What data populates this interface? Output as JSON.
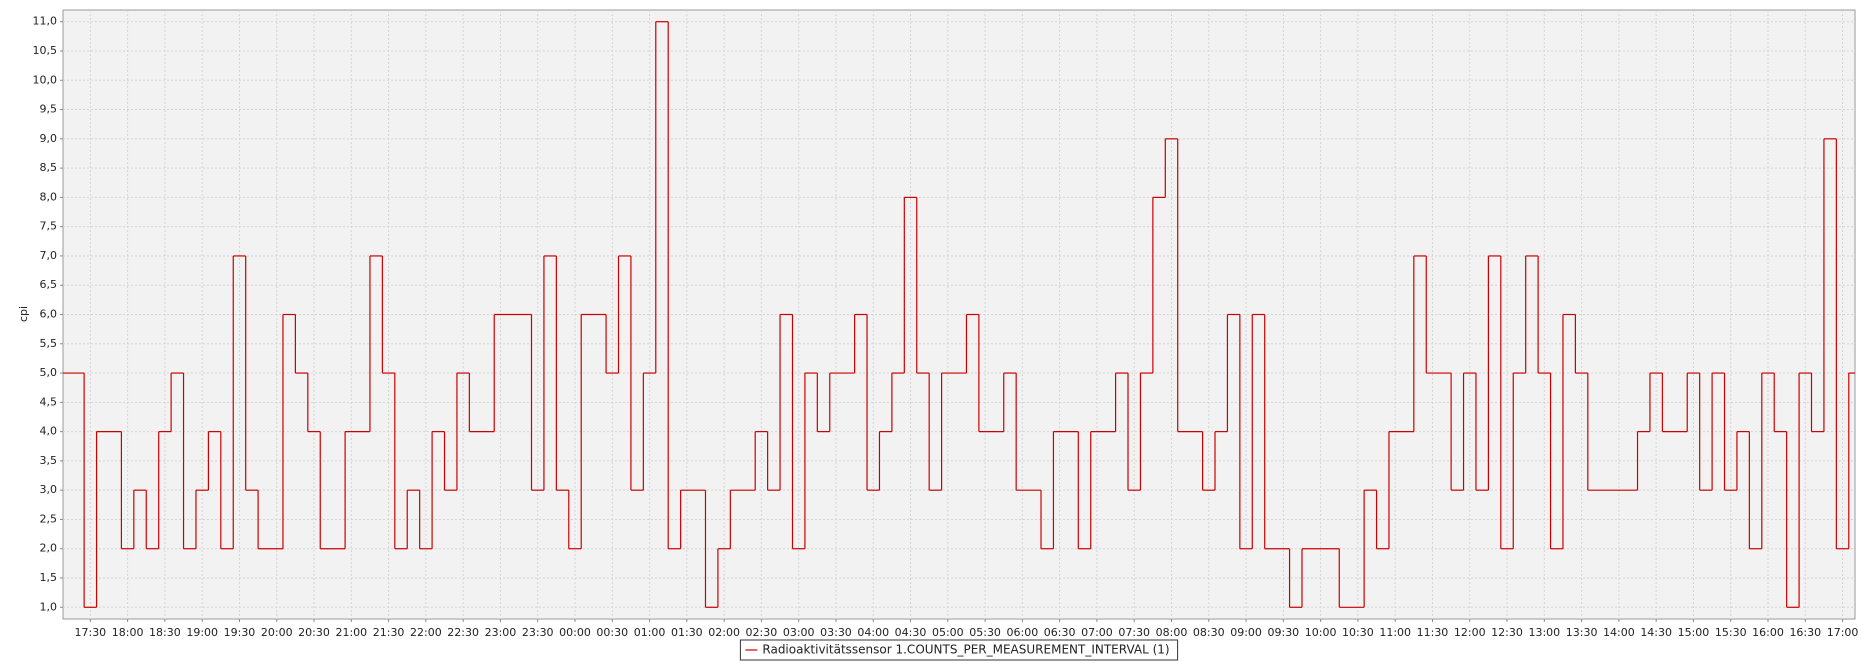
{
  "chart_data": {
    "type": "line",
    "step": "post",
    "y_label": "cpi",
    "grid": true,
    "legend_position": "bottom",
    "series": [
      {
        "name": "Radioaktivitätssensor 1.COUNTS_PER_MEASUREMENT_INTERVAL (1)",
        "color": "#cc0000",
        "x": [
          1028,
          1045,
          1055,
          1075,
          1085,
          1095,
          1105,
          1115,
          1125,
          1135,
          1145,
          1155,
          1165,
          1175,
          1185,
          1205,
          1215,
          1225,
          1235,
          1255,
          1275,
          1285,
          1295,
          1305,
          1315,
          1325,
          1335,
          1345,
          1355,
          1375,
          1405,
          1415,
          1425,
          1435,
          1445,
          1465,
          1475,
          1485,
          1495,
          1505,
          1515,
          1525,
          1545,
          1555,
          1565,
          1585,
          1595,
          1605,
          1615,
          1625,
          1635,
          1645,
          1665,
          1675,
          1685,
          1695,
          1705,
          1715,
          1725,
          1735,
          1755,
          1765,
          1785,
          1795,
          1815,
          1825,
          1845,
          1855,
          1875,
          1885,
          1895,
          1905,
          1915,
          1925,
          1945,
          1955,
          1965,
          1975,
          1985,
          1995,
          2015,
          2025,
          2055,
          2075,
          2085,
          2095,
          2115,
          2125,
          2145,
          2155,
          2165,
          2175,
          2185,
          2195,
          2205,
          2215,
          2225,
          2235,
          2245,
          2255,
          2295,
          2305,
          2315,
          2335,
          2345,
          2355,
          2365,
          2375,
          2385,
          2395,
          2405,
          2415,
          2425,
          2435,
          2445,
          2455,
          2465
        ],
        "values": [
          5,
          1,
          4,
          2,
          3,
          2,
          4,
          5,
          2,
          3,
          4,
          2,
          7,
          3,
          2,
          6,
          5,
          4,
          2,
          4,
          7,
          5,
          2,
          3,
          2,
          4,
          3,
          5,
          4,
          6,
          3,
          7,
          3,
          2,
          6,
          5,
          7,
          3,
          5,
          11,
          2,
          3,
          1,
          2,
          3,
          4,
          3,
          6,
          2,
          5,
          4,
          5,
          6,
          3,
          4,
          5,
          8,
          5,
          3,
          5,
          6,
          4,
          5,
          3,
          2,
          4,
          2,
          4,
          5,
          3,
          5,
          8,
          9,
          4,
          3,
          4,
          6,
          2,
          6,
          2,
          1,
          2,
          1,
          3,
          2,
          4,
          7,
          5,
          3,
          5,
          3,
          7,
          2,
          5,
          7,
          5,
          2,
          6,
          5,
          3,
          4,
          5,
          4,
          5,
          3,
          5,
          3,
          4,
          2,
          5,
          4,
          1,
          5,
          4,
          9,
          2,
          5
        ]
      }
    ],
    "xlim": [
      1028,
      2470
    ],
    "xticks": [
      {
        "value": 1050,
        "label": "17:30"
      },
      {
        "value": 1080,
        "label": "18:00"
      },
      {
        "value": 1110,
        "label": "18:30"
      },
      {
        "value": 1140,
        "label": "19:00"
      },
      {
        "value": 1170,
        "label": "19:30"
      },
      {
        "value": 1200,
        "label": "20:00"
      },
      {
        "value": 1230,
        "label": "20:30"
      },
      {
        "value": 1260,
        "label": "21:00"
      },
      {
        "value": 1290,
        "label": "21:30"
      },
      {
        "value": 1320,
        "label": "22:00"
      },
      {
        "value": 1350,
        "label": "22:30"
      },
      {
        "value": 1380,
        "label": "23:00"
      },
      {
        "value": 1410,
        "label": "23:30"
      },
      {
        "value": 1440,
        "label": "00:00"
      },
      {
        "value": 1470,
        "label": "00:30"
      },
      {
        "value": 1500,
        "label": "01:00"
      },
      {
        "value": 1530,
        "label": "01:30"
      },
      {
        "value": 1560,
        "label": "02:00"
      },
      {
        "value": 1590,
        "label": "02:30"
      },
      {
        "value": 1620,
        "label": "03:00"
      },
      {
        "value": 1650,
        "label": "03:30"
      },
      {
        "value": 1680,
        "label": "04:00"
      },
      {
        "value": 1710,
        "label": "04:30"
      },
      {
        "value": 1740,
        "label": "05:00"
      },
      {
        "value": 1770,
        "label": "05:30"
      },
      {
        "value": 1800,
        "label": "06:00"
      },
      {
        "value": 1830,
        "label": "06:30"
      },
      {
        "value": 1860,
        "label": "07:00"
      },
      {
        "value": 1890,
        "label": "07:30"
      },
      {
        "value": 1920,
        "label": "08:00"
      },
      {
        "value": 1950,
        "label": "08:30"
      },
      {
        "value": 1980,
        "label": "09:00"
      },
      {
        "value": 2010,
        "label": "09:30"
      },
      {
        "value": 2040,
        "label": "10:00"
      },
      {
        "value": 2070,
        "label": "10:30"
      },
      {
        "value": 2100,
        "label": "11:00"
      },
      {
        "value": 2130,
        "label": "11:30"
      },
      {
        "value": 2160,
        "label": "12:00"
      },
      {
        "value": 2190,
        "label": "12:30"
      },
      {
        "value": 2220,
        "label": "13:00"
      },
      {
        "value": 2250,
        "label": "13:30"
      },
      {
        "value": 2280,
        "label": "14:00"
      },
      {
        "value": 2310,
        "label": "14:30"
      },
      {
        "value": 2340,
        "label": "15:00"
      },
      {
        "value": 2370,
        "label": "15:30"
      },
      {
        "value": 2400,
        "label": "16:00"
      },
      {
        "value": 2430,
        "label": "16:30"
      },
      {
        "value": 2460,
        "label": "17:00"
      }
    ],
    "ylim": [
      0.8,
      11.2
    ],
    "yticks": [
      {
        "value": 1.0,
        "label": "1,0"
      },
      {
        "value": 1.5,
        "label": "1,5"
      },
      {
        "value": 2.0,
        "label": "2,0"
      },
      {
        "value": 2.5,
        "label": "2,5"
      },
      {
        "value": 3.0,
        "label": "3,0"
      },
      {
        "value": 3.5,
        "label": "3,5"
      },
      {
        "value": 4.0,
        "label": "4,0"
      },
      {
        "value": 4.5,
        "label": "4,5"
      },
      {
        "value": 5.0,
        "label": "5,0"
      },
      {
        "value": 5.5,
        "label": "5,5"
      },
      {
        "value": 6.0,
        "label": "6,0"
      },
      {
        "value": 6.5,
        "label": "6,5"
      },
      {
        "value": 7.0,
        "label": "7,0"
      },
      {
        "value": 7.5,
        "label": "7,5"
      },
      {
        "value": 8.0,
        "label": "8,0"
      },
      {
        "value": 8.5,
        "label": "8,5"
      },
      {
        "value": 9.0,
        "label": "9,0"
      },
      {
        "value": 9.5,
        "label": "9,5"
      },
      {
        "value": 10.0,
        "label": "10,0"
      },
      {
        "value": 10.5,
        "label": "10,5"
      },
      {
        "value": 11.0,
        "label": "11,0"
      }
    ]
  }
}
